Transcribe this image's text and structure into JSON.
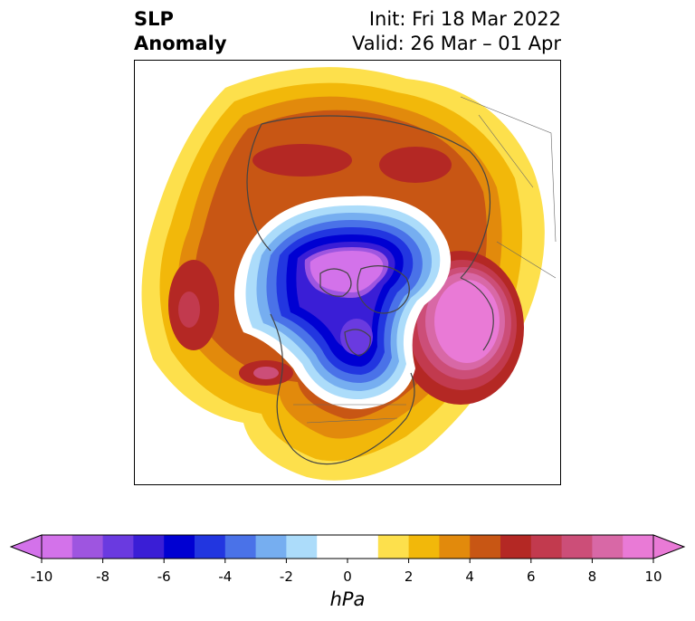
{
  "title": {
    "left_line1": "SLP",
    "left_line2": "Anomaly",
    "right_line1": "Init: Fri 18 Mar 2022",
    "right_line2": "Valid: 26 Mar – 01 Apr"
  },
  "colorbar": {
    "units": "hPa",
    "ticks": [
      "-10",
      "-8",
      "-6",
      "-4",
      "-2",
      "0",
      "2",
      "4",
      "6",
      "8",
      "10"
    ],
    "colors": [
      "#d372ea",
      "#9e55e0",
      "#6a3ae0",
      "#3a1ed6",
      "#0000d2",
      "#2236e0",
      "#4a72e8",
      "#76aef0",
      "#acdcfa",
      "#ffffff",
      "#ffffff",
      "#fde04c",
      "#f2b80a",
      "#e28a0c",
      "#c85614",
      "#b42824",
      "#c23a4e",
      "#cc4e78",
      "#d868a6",
      "#e97ad6"
    ],
    "min_color": "#d372ea",
    "max_color": "#e97ad6"
  }
}
